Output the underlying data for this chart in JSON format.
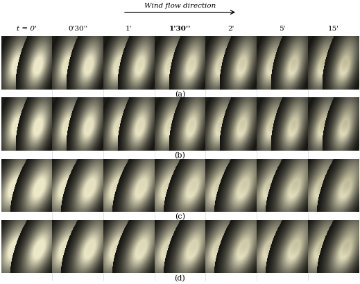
{
  "title": "Wind flow direction",
  "time_labels": [
    "t = 0’",
    "0‰30″",
    "1’",
    "1‰30″",
    "2’",
    "5’",
    "15’"
  ],
  "time_labels_raw": [
    "t = 0'",
    "0'30''",
    "1'",
    "1'30''",
    "2'",
    "5'",
    "15'"
  ],
  "row_labels": [
    "(a)",
    "(b)",
    "(c)",
    "(d)"
  ],
  "n_rows": 4,
  "n_cols": 7,
  "background_color": "#ffffff",
  "label_color": "#000000",
  "title_fontsize": 7.5,
  "tick_fontsize": 7.5,
  "row_label_fontsize": 8
}
